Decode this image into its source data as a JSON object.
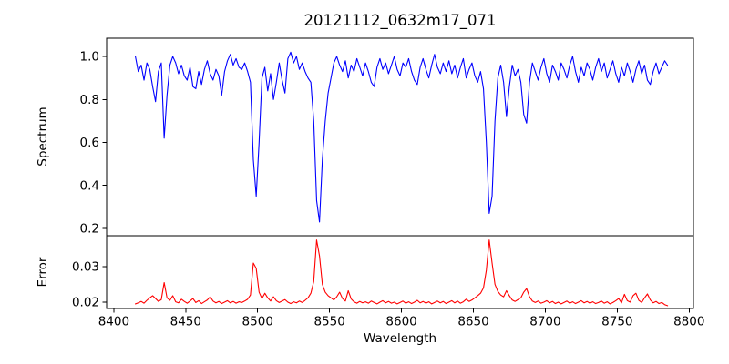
{
  "title": "20121112_0632m17_071",
  "xlabel": "Wavelength",
  "colors": {
    "spectrum_line": "#0000ff",
    "error_line": "#ff0000",
    "axis": "#000000",
    "background": "#ffffff"
  },
  "chart_data": [
    {
      "type": "line",
      "name": "spectrum",
      "title": "20121112_0632m17_071",
      "ylabel": "Spectrum",
      "color": "#0000ff",
      "xlim": [
        8395,
        8803
      ],
      "ylim": [
        0.166,
        1.085
      ],
      "yticks": [
        0.2,
        0.4,
        0.6,
        0.8,
        1.0
      ],
      "ytick_labels": [
        "0.2",
        "0.4",
        "0.6",
        "0.8",
        "1.0"
      ],
      "xticks": [],
      "grid": false,
      "legend": "none",
      "x_start": 8415,
      "x_step": 2,
      "values": [
        1.0,
        0.93,
        0.96,
        0.89,
        0.97,
        0.94,
        0.86,
        0.79,
        0.93,
        0.97,
        0.62,
        0.82,
        0.96,
        1.0,
        0.97,
        0.92,
        0.96,
        0.91,
        0.89,
        0.95,
        0.86,
        0.85,
        0.93,
        0.87,
        0.94,
        0.98,
        0.92,
        0.89,
        0.94,
        0.91,
        0.82,
        0.93,
        0.98,
        1.01,
        0.96,
        0.99,
        0.95,
        0.94,
        0.97,
        0.93,
        0.88,
        0.52,
        0.35,
        0.6,
        0.9,
        0.95,
        0.84,
        0.92,
        0.8,
        0.88,
        0.97,
        0.89,
        0.83,
        0.99,
        1.02,
        0.97,
        1.0,
        0.94,
        0.97,
        0.93,
        0.9,
        0.88,
        0.7,
        0.33,
        0.23,
        0.52,
        0.7,
        0.83,
        0.9,
        0.97,
        1.0,
        0.96,
        0.93,
        0.98,
        0.9,
        0.96,
        0.93,
        0.99,
        0.95,
        0.91,
        0.97,
        0.93,
        0.88,
        0.86,
        0.95,
        0.99,
        0.94,
        0.97,
        0.92,
        0.96,
        1.0,
        0.94,
        0.91,
        0.97,
        0.95,
        0.99,
        0.93,
        0.89,
        0.87,
        0.95,
        0.99,
        0.94,
        0.9,
        0.96,
        1.01,
        0.95,
        0.92,
        0.97,
        0.93,
        0.98,
        0.92,
        0.96,
        0.9,
        0.95,
        0.99,
        0.9,
        0.94,
        0.97,
        0.91,
        0.88,
        0.93,
        0.85,
        0.6,
        0.27,
        0.35,
        0.7,
        0.9,
        0.96,
        0.88,
        0.72,
        0.86,
        0.96,
        0.91,
        0.94,
        0.88,
        0.73,
        0.69,
        0.88,
        0.97,
        0.93,
        0.89,
        0.95,
        0.99,
        0.92,
        0.88,
        0.96,
        0.93,
        0.89,
        0.97,
        0.94,
        0.9,
        0.96,
        1.0,
        0.93,
        0.88,
        0.95,
        0.91,
        0.97,
        0.94,
        0.89,
        0.95,
        0.99,
        0.93,
        0.97,
        0.9,
        0.94,
        0.98,
        0.92,
        0.88,
        0.95,
        0.91,
        0.97,
        0.93,
        0.88,
        0.94,
        0.98,
        0.92,
        0.96,
        0.89,
        0.87,
        0.93,
        0.97,
        0.92,
        0.95,
        0.98,
        0.96
      ]
    },
    {
      "type": "line",
      "name": "error",
      "xlabel": "Wavelength",
      "ylabel": "Error",
      "color": "#ff0000",
      "xlim": [
        8395,
        8803
      ],
      "ylim": [
        0.0182,
        0.0387
      ],
      "yticks": [
        0.02,
        0.03
      ],
      "ytick_labels": [
        "0.02",
        "0.03"
      ],
      "xticks": [
        8400,
        8450,
        8500,
        8550,
        8600,
        8650,
        8700,
        8750,
        8800
      ],
      "xtick_labels": [
        "8400",
        "8450",
        "8500",
        "8550",
        "8600",
        "8650",
        "8700",
        "8750",
        "8800"
      ],
      "grid": false,
      "legend": "none",
      "x_start": 8415,
      "x_step": 2,
      "values": [
        0.0195,
        0.0198,
        0.0202,
        0.0197,
        0.0205,
        0.0212,
        0.0218,
        0.021,
        0.0202,
        0.0207,
        0.0255,
        0.0212,
        0.0205,
        0.0218,
        0.0201,
        0.0198,
        0.0208,
        0.0202,
        0.0197,
        0.0203,
        0.021,
        0.0199,
        0.0204,
        0.0196,
        0.0201,
        0.0206,
        0.0215,
        0.0203,
        0.0198,
        0.0202,
        0.0196,
        0.02,
        0.0204,
        0.0198,
        0.0202,
        0.0197,
        0.0201,
        0.0199,
        0.0203,
        0.0208,
        0.022,
        0.031,
        0.0295,
        0.0228,
        0.021,
        0.0225,
        0.0212,
        0.0203,
        0.0215,
        0.0204,
        0.0199,
        0.0203,
        0.0207,
        0.02,
        0.0196,
        0.0201,
        0.0198,
        0.0203,
        0.0199,
        0.0205,
        0.0212,
        0.0225,
        0.0258,
        0.0375,
        0.033,
        0.025,
        0.0228,
        0.0218,
        0.0212,
        0.0206,
        0.0215,
        0.0228,
        0.021,
        0.0203,
        0.0232,
        0.0209,
        0.0201,
        0.0197,
        0.0202,
        0.0198,
        0.0201,
        0.0197,
        0.0203,
        0.0199,
        0.0195,
        0.02,
        0.0204,
        0.0198,
        0.0202,
        0.0197,
        0.02,
        0.0195,
        0.0199,
        0.0203,
        0.0197,
        0.0201,
        0.0196,
        0.02,
        0.0205,
        0.0198,
        0.0202,
        0.0197,
        0.0201,
        0.0195,
        0.0199,
        0.0203,
        0.0198,
        0.0202,
        0.0196,
        0.02,
        0.0204,
        0.0198,
        0.0203,
        0.0197,
        0.0201,
        0.0208,
        0.0202,
        0.0206,
        0.0212,
        0.0218,
        0.0225,
        0.024,
        0.029,
        0.0375,
        0.031,
        0.025,
        0.023,
        0.022,
        0.0215,
        0.0232,
        0.0218,
        0.0206,
        0.0202,
        0.0207,
        0.0212,
        0.0228,
        0.0238,
        0.0215,
        0.0203,
        0.0199,
        0.0203,
        0.0197,
        0.02,
        0.0204,
        0.0198,
        0.0202,
        0.0196,
        0.02,
        0.0195,
        0.0199,
        0.0203,
        0.0197,
        0.0201,
        0.0196,
        0.02,
        0.0204,
        0.0198,
        0.0202,
        0.0197,
        0.0201,
        0.0196,
        0.0199,
        0.0203,
        0.0197,
        0.0201,
        0.0195,
        0.0199,
        0.0204,
        0.021,
        0.0198,
        0.0222,
        0.0204,
        0.02,
        0.0218,
        0.0225,
        0.0205,
        0.0199,
        0.0212,
        0.0223,
        0.0206,
        0.0198,
        0.0202,
        0.0196,
        0.0199,
        0.0193,
        0.019
      ]
    }
  ]
}
